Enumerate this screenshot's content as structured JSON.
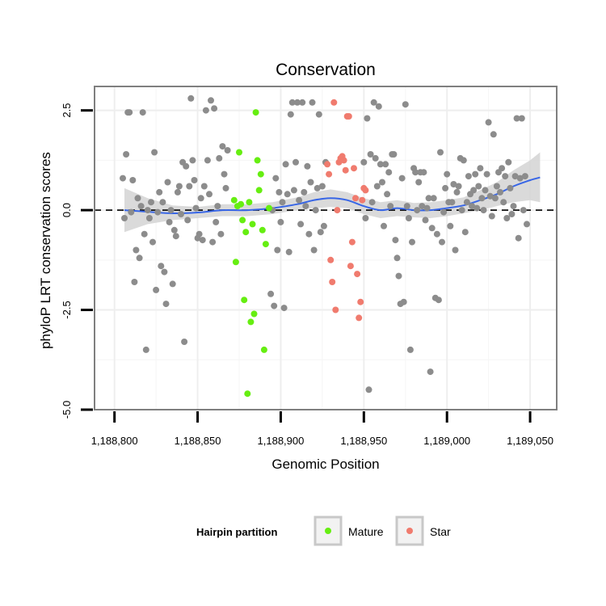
{
  "chart_data": {
    "type": "scatter",
    "title": "Conservation",
    "xlabel": "Genomic Position",
    "ylabel": "phyloP LRT conservation scores",
    "xlim": [
      1188788,
      1189066
    ],
    "ylim": [
      -5.0,
      3.1
    ],
    "x_ticks": [
      {
        "value": 1188800,
        "label": "1,188,800"
      },
      {
        "value": 1188850,
        "label": "1,188,850"
      },
      {
        "value": 1188900,
        "label": "1,188,900"
      },
      {
        "value": 1188950,
        "label": "1,188,950"
      },
      {
        "value": 1189000,
        "label": "1,189,000"
      },
      {
        "value": 1189050,
        "label": "1,189,050"
      }
    ],
    "y_ticks": [
      {
        "value": -5.0,
        "label": "-5.0"
      },
      {
        "value": -2.5,
        "label": "-2.5"
      },
      {
        "value": 0.0,
        "label": "0.0"
      },
      {
        "value": 2.5,
        "label": "2.5"
      }
    ],
    "grid": true,
    "reference_line": {
      "y": 0,
      "style": "dashed"
    },
    "legend": {
      "title": "Hairpin partition",
      "placement": "bottom",
      "entries": [
        {
          "label": "Mature",
          "color": "#66ee11"
        },
        {
          "label": "Star",
          "color": "#f07b6e"
        }
      ]
    },
    "colors": {
      "other": "#8c8c8c",
      "mature": "#66ee11",
      "star": "#f07b6e",
      "smooth": "#3866e6",
      "band": "#d3d3d3"
    },
    "series": [
      {
        "group": "other",
        "points": [
          [
            1188805,
            0.8
          ],
          [
            1188806,
            -0.2
          ],
          [
            1188807,
            1.4
          ],
          [
            1188808,
            2.45
          ],
          [
            1188809,
            2.45
          ],
          [
            1188810,
            -0.05
          ],
          [
            1188811,
            0.75
          ],
          [
            1188812,
            -1.8
          ],
          [
            1188813,
            -1.0
          ],
          [
            1188814,
            0.3
          ],
          [
            1188815,
            -1.2
          ],
          [
            1188816,
            0.1
          ],
          [
            1188817,
            2.45
          ],
          [
            1188818,
            -0.6
          ],
          [
            1188819,
            -3.5
          ],
          [
            1188820,
            0.0
          ],
          [
            1188821,
            -0.2
          ],
          [
            1188822,
            0.2
          ],
          [
            1188823,
            -0.8
          ],
          [
            1188824,
            1.45
          ],
          [
            1188825,
            -2.0
          ],
          [
            1188826,
            -0.05
          ],
          [
            1188827,
            0.45
          ],
          [
            1188828,
            -1.4
          ],
          [
            1188829,
            0.2
          ],
          [
            1188830,
            -1.55
          ],
          [
            1188831,
            -2.35
          ],
          [
            1188832,
            0.7
          ],
          [
            1188833,
            -0.3
          ],
          [
            1188834,
            0.0
          ],
          [
            1188835,
            -1.85
          ],
          [
            1188836,
            -0.5
          ],
          [
            1188837,
            -0.65
          ],
          [
            1188838,
            0.45
          ],
          [
            1188839,
            0.6
          ],
          [
            1188840,
            -0.1
          ],
          [
            1188841,
            1.2
          ],
          [
            1188842,
            -3.3
          ],
          [
            1188843,
            1.1
          ],
          [
            1188844,
            -0.25
          ],
          [
            1188845,
            0.6
          ],
          [
            1188846,
            2.8
          ],
          [
            1188847,
            1.25
          ],
          [
            1188848,
            0.75
          ],
          [
            1188849,
            0.05
          ],
          [
            1188850,
            -0.7
          ],
          [
            1188851,
            -0.6
          ],
          [
            1188852,
            0.3
          ],
          [
            1188853,
            -0.75
          ],
          [
            1188854,
            0.6
          ],
          [
            1188855,
            2.5
          ],
          [
            1188856,
            1.25
          ],
          [
            1188857,
            0.4
          ],
          [
            1188858,
            2.75
          ],
          [
            1188859,
            -0.8
          ],
          [
            1188860,
            2.55
          ],
          [
            1188861,
            -0.3
          ],
          [
            1188862,
            0.1
          ],
          [
            1188863,
            1.3
          ],
          [
            1188864,
            -0.6
          ],
          [
            1188865,
            1.6
          ],
          [
            1188866,
            0.9
          ],
          [
            1188867,
            0.55
          ],
          [
            1188868,
            1.5
          ],
          [
            1188894,
            -2.1
          ],
          [
            1188895,
            0.0
          ],
          [
            1188896,
            -2.4
          ],
          [
            1188897,
            0.8
          ],
          [
            1188898,
            -1.0
          ],
          [
            1188899,
            0.45
          ],
          [
            1188900,
            -0.3
          ],
          [
            1188901,
            0.2
          ],
          [
            1188902,
            -2.45
          ],
          [
            1188903,
            1.15
          ],
          [
            1188904,
            0.4
          ],
          [
            1188905,
            -1.05
          ],
          [
            1188906,
            2.4
          ],
          [
            1188907,
            2.7
          ],
          [
            1188908,
            0.5
          ],
          [
            1188909,
            1.2
          ],
          [
            1188910,
            2.7
          ],
          [
            1188911,
            0.25
          ],
          [
            1188912,
            -0.35
          ],
          [
            1188913,
            2.7
          ],
          [
            1188914,
            0.45
          ],
          [
            1188915,
            0.1
          ],
          [
            1188916,
            1.1
          ],
          [
            1188917,
            -0.6
          ],
          [
            1188918,
            0.7
          ],
          [
            1188919,
            2.7
          ],
          [
            1188920,
            -1.0
          ],
          [
            1188921,
            0.0
          ],
          [
            1188922,
            0.55
          ],
          [
            1188923,
            2.4
          ],
          [
            1188924,
            -0.55
          ],
          [
            1188925,
            0.6
          ],
          [
            1188926,
            -0.4
          ],
          [
            1188927,
            1.2
          ],
          [
            1188950,
            1.2
          ],
          [
            1188951,
            -0.2
          ],
          [
            1188952,
            2.3
          ],
          [
            1188953,
            -4.5
          ],
          [
            1188954,
            1.4
          ],
          [
            1188955,
            0.2
          ],
          [
            1188956,
            2.7
          ],
          [
            1188957,
            1.3
          ],
          [
            1188958,
            0.6
          ],
          [
            1188959,
            2.6
          ],
          [
            1188960,
            1.15
          ],
          [
            1188961,
            0.7
          ],
          [
            1188962,
            -0.4
          ],
          [
            1188963,
            1.15
          ],
          [
            1188964,
            0.4
          ],
          [
            1188965,
            0.95
          ],
          [
            1188966,
            0.1
          ],
          [
            1188967,
            1.4
          ],
          [
            1188968,
            1.4
          ],
          [
            1188969,
            -0.75
          ],
          [
            1188970,
            -1.2
          ],
          [
            1188971,
            -1.65
          ],
          [
            1188972,
            -2.35
          ],
          [
            1188973,
            0.8
          ],
          [
            1188974,
            -2.3
          ],
          [
            1188975,
            2.65
          ],
          [
            1188976,
            0.1
          ],
          [
            1188977,
            -0.2
          ],
          [
            1188978,
            -3.5
          ],
          [
            1188979,
            -0.8
          ],
          [
            1188980,
            1.05
          ],
          [
            1188981,
            0.95
          ],
          [
            1188982,
            0.0
          ],
          [
            1188983,
            0.7
          ],
          [
            1188984,
            0.95
          ],
          [
            1188985,
            0.1
          ],
          [
            1188986,
            0.95
          ],
          [
            1188987,
            -0.25
          ],
          [
            1188988,
            0.05
          ],
          [
            1188989,
            0.3
          ],
          [
            1188990,
            -4.05
          ],
          [
            1188991,
            -0.45
          ],
          [
            1188992,
            0.3
          ],
          [
            1188993,
            -2.2
          ],
          [
            1188994,
            -0.6
          ],
          [
            1188995,
            -2.25
          ],
          [
            1188996,
            1.45
          ],
          [
            1188997,
            -0.8
          ],
          [
            1188998,
            -0.05
          ],
          [
            1188999,
            0.55
          ],
          [
            1189000,
            0.9
          ],
          [
            1189001,
            0.2
          ],
          [
            1189002,
            -0.4
          ],
          [
            1189003,
            0.2
          ],
          [
            1189004,
            0.65
          ],
          [
            1189005,
            -1.0
          ],
          [
            1189006,
            0.45
          ],
          [
            1189007,
            0.6
          ],
          [
            1189008,
            1.3
          ],
          [
            1189009,
            0.0
          ],
          [
            1189010,
            1.25
          ],
          [
            1189011,
            -0.55
          ],
          [
            1189012,
            0.2
          ],
          [
            1189013,
            0.85
          ],
          [
            1189014,
            0.4
          ],
          [
            1189015,
            0.1
          ],
          [
            1189016,
            0.5
          ],
          [
            1189017,
            0.9
          ],
          [
            1189018,
            0.05
          ],
          [
            1189019,
            0.6
          ],
          [
            1189020,
            1.05
          ],
          [
            1189021,
            0.3
          ],
          [
            1189022,
            0.0
          ],
          [
            1189023,
            0.5
          ],
          [
            1189024,
            0.9
          ],
          [
            1189025,
            2.2
          ],
          [
            1189026,
            0.35
          ],
          [
            1189027,
            -0.15
          ],
          [
            1189028,
            1.9
          ],
          [
            1189029,
            0.3
          ],
          [
            1189030,
            0.6
          ],
          [
            1189031,
            0.95
          ],
          [
            1189032,
            0.45
          ],
          [
            1189033,
            1.05
          ],
          [
            1189034,
            0.2
          ],
          [
            1189035,
            0.85
          ],
          [
            1189036,
            -0.2
          ],
          [
            1189037,
            1.2
          ],
          [
            1189038,
            0.55
          ],
          [
            1189039,
            -0.1
          ],
          [
            1189040,
            0.1
          ],
          [
            1189041,
            0.85
          ],
          [
            1189042,
            2.3
          ],
          [
            1189043,
            -0.7
          ],
          [
            1189044,
            0.8
          ],
          [
            1189045,
            2.3
          ],
          [
            1189046,
            0.0
          ],
          [
            1189047,
            0.85
          ],
          [
            1189048,
            -0.35
          ]
        ]
      },
      {
        "group": "mature",
        "name": "Mature",
        "points": [
          [
            1188872,
            0.25
          ],
          [
            1188873,
            -1.3
          ],
          [
            1188874,
            0.1
          ],
          [
            1188875,
            1.45
          ],
          [
            1188876,
            0.15
          ],
          [
            1188877,
            -0.25
          ],
          [
            1188878,
            -2.25
          ],
          [
            1188879,
            -0.55
          ],
          [
            1188880,
            -4.6
          ],
          [
            1188881,
            0.2
          ],
          [
            1188882,
            -2.8
          ],
          [
            1188883,
            -0.35
          ],
          [
            1188884,
            -2.6
          ],
          [
            1188885,
            2.45
          ],
          [
            1188886,
            1.25
          ],
          [
            1188887,
            0.5
          ],
          [
            1188888,
            0.9
          ],
          [
            1188889,
            -0.5
          ],
          [
            1188890,
            -3.5
          ],
          [
            1188891,
            -0.85
          ],
          [
            1188893,
            0.05
          ]
        ]
      },
      {
        "group": "star",
        "name": "Star",
        "points": [
          [
            1188928,
            1.15
          ],
          [
            1188929,
            0.9
          ],
          [
            1188930,
            -1.25
          ],
          [
            1188931,
            -1.8
          ],
          [
            1188932,
            2.7
          ],
          [
            1188933,
            -2.5
          ],
          [
            1188934,
            0.0
          ],
          [
            1188935,
            1.2
          ],
          [
            1188936,
            1.3
          ],
          [
            1188937,
            1.35
          ],
          [
            1188938,
            1.25
          ],
          [
            1188939,
            1.0
          ],
          [
            1188940,
            2.35
          ],
          [
            1188941,
            2.35
          ],
          [
            1188942,
            -1.4
          ],
          [
            1188943,
            -0.8
          ],
          [
            1188944,
            1.05
          ],
          [
            1188945,
            0.3
          ],
          [
            1188946,
            -1.6
          ],
          [
            1188947,
            -2.7
          ],
          [
            1188948,
            -2.3
          ],
          [
            1188949,
            0.25
          ],
          [
            1188950,
            0.55
          ],
          [
            1188951,
            0.5
          ]
        ]
      }
    ],
    "smooth_fit": {
      "x": [
        1188806,
        1188820,
        1188835,
        1188850,
        1188865,
        1188880,
        1188895,
        1188910,
        1188920,
        1188930,
        1188940,
        1188950,
        1188960,
        1188970,
        1188980,
        1188990,
        1189000,
        1189010,
        1189020,
        1189030,
        1189040,
        1189050,
        1189056
      ],
      "y": [
        0.0,
        -0.04,
        -0.08,
        -0.06,
        0.0,
        0.0,
        0.05,
        0.15,
        0.25,
        0.3,
        0.25,
        0.1,
        0.0,
        0.05,
        0.0,
        0.0,
        0.05,
        0.12,
        0.25,
        0.4,
        0.6,
        0.75,
        0.82
      ],
      "lower": [
        -0.55,
        -0.35,
        -0.25,
        -0.2,
        -0.15,
        -0.15,
        -0.1,
        0.0,
        0.05,
        0.08,
        0.05,
        -0.1,
        -0.2,
        -0.15,
        -0.18,
        -0.2,
        -0.15,
        -0.08,
        0.0,
        0.1,
        0.2,
        0.25,
        0.2
      ],
      "upper": [
        0.55,
        0.3,
        0.12,
        0.08,
        0.15,
        0.15,
        0.2,
        0.32,
        0.45,
        0.52,
        0.45,
        0.3,
        0.2,
        0.25,
        0.18,
        0.2,
        0.25,
        0.32,
        0.5,
        0.7,
        1.0,
        1.25,
        1.45
      ]
    }
  }
}
